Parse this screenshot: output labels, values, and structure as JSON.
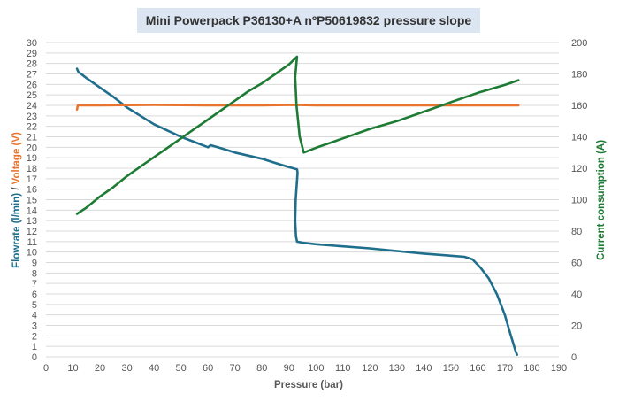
{
  "chart_data": {
    "type": "line",
    "title": "Mini Powerpack P36130+A nºP50619832 pressure slope",
    "xlabel": "Pressure (bar)",
    "ylabel_left_parts": [
      "Flowrate (l/min)",
      " / ",
      "Voltage (V)"
    ],
    "ylabel_right": "Current consumption (A)",
    "xlim": [
      0,
      190
    ],
    "ylim_left": [
      0,
      30
    ],
    "ylim_right": [
      0,
      200
    ],
    "x_ticks": [
      "0",
      "10",
      "20",
      "30",
      "40",
      "50",
      "60",
      "70",
      "80",
      "90",
      "100",
      "110",
      "120",
      "130",
      "140",
      "150",
      "160",
      "170",
      "180",
      "190"
    ],
    "y_left_ticks": [
      "0",
      "1",
      "2",
      "3",
      "4",
      "5",
      "6",
      "7",
      "8",
      "9",
      "10",
      "11",
      "12",
      "13",
      "14",
      "15",
      "16",
      "17",
      "18",
      "19",
      "20",
      "21",
      "22",
      "23",
      "24",
      "25",
      "26",
      "27",
      "28",
      "29",
      "30"
    ],
    "y_right_ticks": [
      "0",
      "20",
      "40",
      "60",
      "80",
      "100",
      "120",
      "140",
      "160",
      "180",
      "200"
    ],
    "grid": "horizontal",
    "legend": "none",
    "series": [
      {
        "axis": "left",
        "color": "#1F6E8C",
        "points": [
          [
            11.5,
            27.5
          ],
          [
            12,
            27.2
          ],
          [
            15,
            26.6
          ],
          [
            20,
            25.7
          ],
          [
            25,
            24.8
          ],
          [
            30,
            23.8
          ],
          [
            35,
            23.0
          ],
          [
            40,
            22.2
          ],
          [
            45,
            21.6
          ],
          [
            50,
            21.0
          ],
          [
            55,
            20.5
          ],
          [
            60,
            20.0
          ],
          [
            61,
            20.2
          ],
          [
            65,
            19.9
          ],
          [
            70,
            19.5
          ],
          [
            75,
            19.2
          ],
          [
            80,
            18.9
          ],
          [
            85,
            18.5
          ],
          [
            90,
            18.1
          ],
          [
            93,
            17.9
          ],
          [
            93.2,
            17.6
          ],
          [
            92.5,
            15.0
          ],
          [
            92.3,
            13.0
          ],
          [
            92.6,
            11.5
          ],
          [
            93,
            11.0
          ],
          [
            95,
            10.9
          ],
          [
            100,
            10.75
          ],
          [
            110,
            10.55
          ],
          [
            120,
            10.35
          ],
          [
            130,
            10.1
          ],
          [
            140,
            9.85
          ],
          [
            150,
            9.65
          ],
          [
            155,
            9.55
          ],
          [
            158,
            9.3
          ],
          [
            161,
            8.5
          ],
          [
            164,
            7.5
          ],
          [
            167,
            6.0
          ],
          [
            170,
            4.0
          ],
          [
            172,
            2.2
          ],
          [
            174,
            0.5
          ],
          [
            174.5,
            0.2
          ]
        ]
      },
      {
        "axis": "left",
        "color": "#E8742F",
        "points": [
          [
            11.5,
            23.6
          ],
          [
            11.8,
            24.0
          ],
          [
            20,
            24.0
          ],
          [
            40,
            24.05
          ],
          [
            60,
            24.0
          ],
          [
            80,
            24.0
          ],
          [
            92,
            24.05
          ],
          [
            100,
            24.0
          ],
          [
            120,
            24.0
          ],
          [
            140,
            24.0
          ],
          [
            160,
            24.0
          ],
          [
            175,
            24.0
          ]
        ]
      },
      {
        "axis": "right",
        "color": "#1E7B34",
        "points": [
          [
            11.5,
            91
          ],
          [
            15,
            95
          ],
          [
            20,
            102
          ],
          [
            25,
            108
          ],
          [
            30,
            115
          ],
          [
            35,
            121
          ],
          [
            40,
            127
          ],
          [
            45,
            133
          ],
          [
            50,
            139
          ],
          [
            55,
            145
          ],
          [
            60,
            151
          ],
          [
            65,
            157
          ],
          [
            70,
            163
          ],
          [
            75,
            169
          ],
          [
            80,
            174
          ],
          [
            85,
            180
          ],
          [
            90,
            186
          ],
          [
            93,
            191
          ],
          [
            92.3,
            178
          ],
          [
            92.8,
            160
          ],
          [
            94,
            140
          ],
          [
            95.5,
            130
          ],
          [
            100,
            133
          ],
          [
            110,
            139
          ],
          [
            120,
            145
          ],
          [
            130,
            150
          ],
          [
            140,
            156
          ],
          [
            150,
            162
          ],
          [
            160,
            168
          ],
          [
            170,
            173
          ],
          [
            175,
            176
          ]
        ]
      }
    ]
  }
}
